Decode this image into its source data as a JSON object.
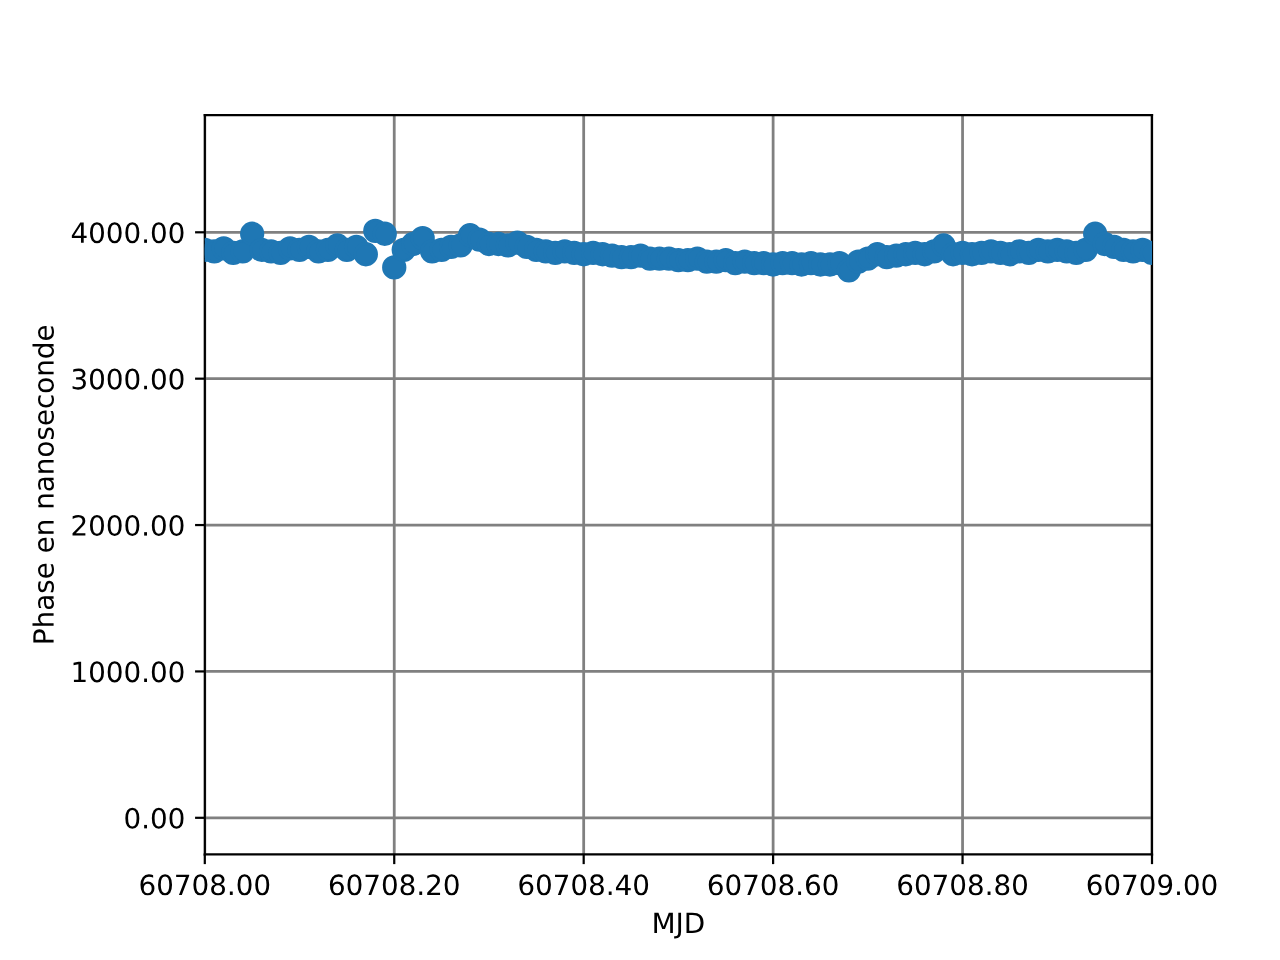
{
  "chart_data": {
    "type": "scatter",
    "xlabel": "MJD",
    "ylabel": "Phase en nanoseconde",
    "x": [
      60708.0,
      60708.01,
      60708.02,
      60708.03,
      60708.04,
      60708.05,
      60708.06,
      60708.07,
      60708.08,
      60708.09,
      60708.1,
      60708.11,
      60708.12,
      60708.13,
      60708.14,
      60708.15,
      60708.16,
      60708.17,
      60708.18,
      60708.19,
      60708.2,
      60708.21,
      60708.22,
      60708.23,
      60708.24,
      60708.25,
      60708.26,
      60708.27,
      60708.28,
      60708.29,
      60708.3,
      60708.31,
      60708.32,
      60708.33,
      60708.34,
      60708.35,
      60708.36,
      60708.37,
      60708.38,
      60708.39,
      60708.4,
      60708.41,
      60708.42,
      60708.43,
      60708.44,
      60708.45,
      60708.46,
      60708.47,
      60708.48,
      60708.49,
      60708.5,
      60708.51,
      60708.52,
      60708.53,
      60708.54,
      60708.55,
      60708.56,
      60708.57,
      60708.58,
      60708.59,
      60708.6,
      60708.61,
      60708.62,
      60708.63,
      60708.64,
      60708.65,
      60708.66,
      60708.67,
      60708.68,
      60708.69,
      60708.7,
      60708.71,
      60708.72,
      60708.73,
      60708.74,
      60708.75,
      60708.76,
      60708.77,
      60708.78,
      60708.79,
      60708.8,
      60708.81,
      60708.82,
      60708.83,
      60708.84,
      60708.85,
      60708.86,
      60708.87,
      60708.88,
      60708.89,
      60708.9,
      60708.91,
      60708.92,
      60708.93,
      60708.94,
      60708.95,
      60708.96,
      60708.97,
      60708.98,
      60708.99,
      60709.0
    ],
    "series": [
      {
        "color": "#1f77b4",
        "values": [
          3880,
          3870,
          3890,
          3860,
          3870,
          3990,
          3880,
          3870,
          3860,
          3890,
          3880,
          3900,
          3870,
          3880,
          3910,
          3880,
          3900,
          3850,
          4010,
          3990,
          3760,
          3880,
          3920,
          3960,
          3870,
          3880,
          3900,
          3910,
          3980,
          3950,
          3920,
          3920,
          3910,
          3930,
          3900,
          3880,
          3870,
          3860,
          3870,
          3860,
          3850,
          3860,
          3850,
          3840,
          3830,
          3830,
          3840,
          3820,
          3820,
          3820,
          3810,
          3810,
          3820,
          3800,
          3800,
          3810,
          3790,
          3800,
          3790,
          3790,
          3780,
          3790,
          3790,
          3780,
          3790,
          3780,
          3780,
          3790,
          3740,
          3800,
          3820,
          3850,
          3830,
          3840,
          3850,
          3860,
          3850,
          3870,
          3910,
          3850,
          3860,
          3850,
          3860,
          3870,
          3860,
          3850,
          3870,
          3860,
          3880,
          3870,
          3880,
          3870,
          3860,
          3880,
          3990,
          3920,
          3900,
          3880,
          3870,
          3880,
          3860
        ]
      }
    ],
    "xlim": [
      60708.0,
      60709.0
    ],
    "xticks": [
      {
        "value": 60708.0,
        "label": "60708.00"
      },
      {
        "value": 60708.2,
        "label": "60708.20"
      },
      {
        "value": 60708.4,
        "label": "60708.40"
      },
      {
        "value": 60708.6,
        "label": "60708.60"
      },
      {
        "value": 60708.8,
        "label": "60708.80"
      },
      {
        "value": 60709.0,
        "label": "60709.00"
      }
    ],
    "ylim": [
      -250,
      4800
    ],
    "yticks": [
      {
        "value": 0,
        "label": "0.00"
      },
      {
        "value": 1000,
        "label": "1000.00"
      },
      {
        "value": 2000,
        "label": "2000.00"
      },
      {
        "value": 3000,
        "label": "3000.00"
      },
      {
        "value": 4000,
        "label": "4000.00"
      }
    ],
    "grid": true,
    "marker": "circle"
  }
}
